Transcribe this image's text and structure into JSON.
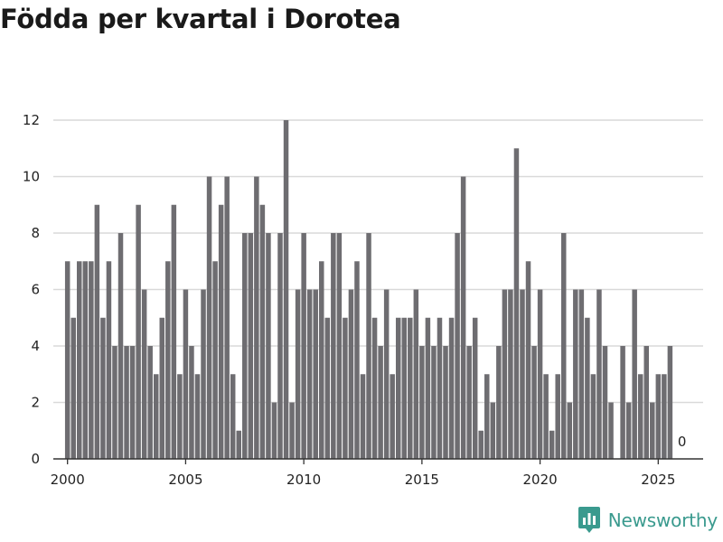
{
  "title": "Födda per kvartal i Dorotea",
  "brand": {
    "name": "Newsworthy",
    "icon": "bar-chart-bubble-icon",
    "color": "#3a9a8e"
  },
  "chart_data": {
    "type": "bar",
    "title": "Födda per kvartal i Dorotea",
    "xlabel": "",
    "ylabel": "",
    "ylim": [
      0,
      12
    ],
    "y_ticks": [
      0,
      2,
      4,
      6,
      8,
      10,
      12
    ],
    "x_ticks": [
      2000,
      2005,
      2010,
      2015,
      2020,
      2025
    ],
    "x_tick_labels": [
      "2000",
      "2005",
      "2010",
      "2015",
      "2020",
      "2025"
    ],
    "x_range": [
      1999.4,
      2026.9
    ],
    "start_year": 2000,
    "bar_color": "#6e6d71",
    "grid": true,
    "values": [
      7,
      5,
      7,
      7,
      7,
      9,
      5,
      7,
      4,
      8,
      4,
      4,
      9,
      6,
      4,
      3,
      5,
      7,
      9,
      3,
      6,
      4,
      3,
      6,
      10,
      7,
      9,
      10,
      3,
      1,
      8,
      8,
      10,
      9,
      8,
      2,
      8,
      12,
      2,
      6,
      8,
      6,
      6,
      7,
      5,
      8,
      8,
      5,
      6,
      7,
      3,
      8,
      5,
      4,
      6,
      3,
      5,
      5,
      5,
      6,
      4,
      5,
      4,
      5,
      4,
      5,
      8,
      10,
      4,
      5,
      1,
      3,
      2,
      4,
      6,
      6,
      11,
      6,
      7,
      4,
      6,
      3,
      1,
      3,
      8,
      2,
      6,
      6,
      5,
      3,
      6,
      4,
      2,
      0,
      4,
      2,
      6,
      3,
      4,
      2,
      3,
      3,
      4,
      0
    ],
    "annotations": [
      {
        "quarter_index": 103,
        "text": "0"
      }
    ]
  }
}
